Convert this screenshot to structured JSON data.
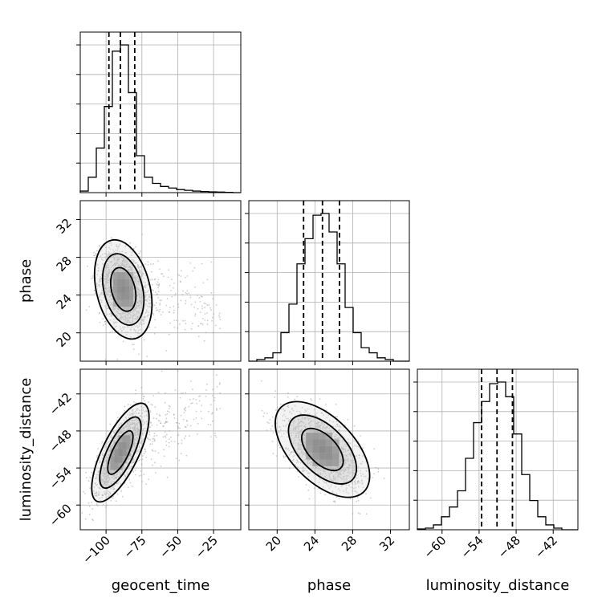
{
  "chart_data": {
    "type": "corner",
    "parameters": [
      "geocent_time",
      "phase",
      "luminosity_distance"
    ],
    "axis_labels": {
      "geocent_time": "geocent_time",
      "phase": "phase",
      "luminosity_distance": "luminosity_distance"
    },
    "ranges": {
      "geocent_time": [
        -118,
        -6
      ],
      "phase": [
        17,
        34
      ],
      "luminosity_distance": [
        -64,
        -38
      ]
    },
    "ticks": {
      "geocent_time": [
        -100,
        -75,
        -50,
        -25
      ],
      "phase": [
        20,
        24,
        28,
        32
      ],
      "luminosity_distance": [
        -60,
        -54,
        -48,
        -42
      ]
    },
    "tick_labels": {
      "geocent_time": [
        "−100",
        "−75",
        "−50",
        "−25"
      ],
      "phase": [
        "20",
        "24",
        "28",
        "32"
      ],
      "luminosity_distance": [
        "−60",
        "−54",
        "−48",
        "−42"
      ]
    },
    "quantiles": {
      "geocent_time": [
        -98,
        -90,
        -80
      ],
      "phase": [
        22.8,
        24.8,
        26.6
      ],
      "luminosity_distance": [
        -53.6,
        -51.1,
        -48.6
      ]
    },
    "histograms": {
      "geocent_time": {
        "edges": [
          -118,
          -112.4,
          -106.8,
          -101.2,
          -95.6,
          -90,
          -84.4,
          -78.8,
          -73.2,
          -67.6,
          -62,
          -56.4,
          -50.8,
          -45.2,
          -39.6,
          -34,
          -28.4,
          -22.8,
          -17.2,
          -11.6,
          -6
        ],
        "counts": [
          1,
          10,
          29,
          56,
          92,
          96,
          65,
          24,
          10,
          6,
          4,
          3,
          2,
          1.5,
          1,
          0.7,
          0.5,
          0.4,
          0.2,
          0
        ]
      },
      "phase": {
        "edges": [
          17,
          17.85,
          18.7,
          19.55,
          20.4,
          21.25,
          22.1,
          22.95,
          23.8,
          24.65,
          25.5,
          26.35,
          27.2,
          28.05,
          28.9,
          29.75,
          30.6,
          31.45,
          32.3,
          33.15,
          34
        ],
        "counts": [
          0,
          1,
          2,
          5,
          17,
          34,
          58,
          73,
          87,
          88,
          77,
          58,
          32,
          17,
          8,
          5,
          2,
          1,
          0,
          0
        ]
      },
      "luminosity_distance": {
        "edges": [
          -64,
          -62.7,
          -61.4,
          -60.1,
          -58.8,
          -57.5,
          -56.2,
          -54.9,
          -53.6,
          -52.3,
          -51,
          -49.7,
          -48.4,
          -47.1,
          -45.8,
          -44.5,
          -43.2,
          -41.9,
          -40.6,
          -39.3,
          -38
        ],
        "counts": [
          0.5,
          1,
          3,
          8,
          14,
          24,
          44,
          66,
          79,
          90,
          91,
          82,
          59,
          34,
          18,
          8,
          3,
          1,
          0,
          0
        ]
      }
    },
    "pairs": [
      {
        "x": "geocent_time",
        "y": "phase",
        "center": [
          -88,
          24.6
        ],
        "sd": [
          8,
          2.1
        ],
        "rho": -0.3,
        "tail_to": -20
      },
      {
        "x": "geocent_time",
        "y": "luminosity_distance",
        "center": [
          -90,
          -51.5
        ],
        "sd": [
          8,
          3.2
        ],
        "rho": 0.72,
        "tail_to": -20
      },
      {
        "x": "phase",
        "y": "luminosity_distance",
        "center": [
          24.8,
          -51
        ],
        "sd": [
          2,
          3.1
        ],
        "rho": -0.55,
        "tail_to": null
      }
    ],
    "grid": true,
    "legend": "none"
  }
}
